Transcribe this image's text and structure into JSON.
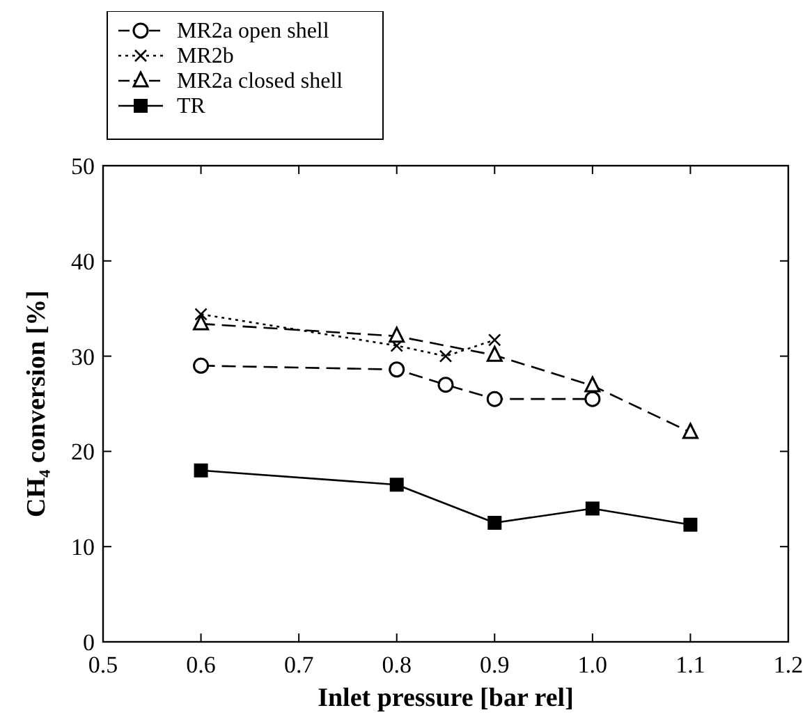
{
  "chart_data": {
    "type": "line",
    "xlabel": "Inlet pressure [bar rel]",
    "ylabel": "CH₄ conversion [%]",
    "xlim": [
      0.5,
      1.2
    ],
    "xticks": [
      0.5,
      0.6,
      0.7,
      0.8,
      0.9,
      {
        "value": 1,
        "label": "1.0"
      },
      1.1,
      1.2
    ],
    "ylim": [
      0,
      50
    ],
    "yticks": [
      0,
      10,
      20,
      30,
      40,
      50
    ],
    "grid": false,
    "legend": "top left",
    "series": [
      {
        "name": "MR2a open shell",
        "color": "#000000",
        "marker": "circle",
        "line_style": "dashed",
        "x": [
          0.6,
          0.8,
          0.85,
          0.9,
          1.0
        ],
        "values": [
          29.0,
          28.6,
          27.0,
          25.5,
          25.5
        ]
      },
      {
        "name": "MR2b",
        "color": "#000000",
        "marker": "cross",
        "line_style": "dotted",
        "x": [
          0.6,
          0.8,
          0.85,
          0.9
        ],
        "values": [
          34.4,
          31.1,
          30.0,
          31.7
        ]
      },
      {
        "name": "MR2a closed shell",
        "color": "#000000",
        "marker": "triangle",
        "line_style": "dashed",
        "x": [
          0.6,
          0.8,
          0.9,
          1.0,
          1.1
        ],
        "values": [
          33.4,
          32.1,
          30.1,
          26.9,
          22.0
        ]
      },
      {
        "name": "TR",
        "color": "#000000",
        "marker": "square",
        "line_style": "solid",
        "x": [
          0.6,
          0.8,
          0.9,
          1.0,
          1.1
        ],
        "values": [
          18.0,
          16.5,
          12.5,
          14.0,
          12.3
        ]
      }
    ]
  }
}
